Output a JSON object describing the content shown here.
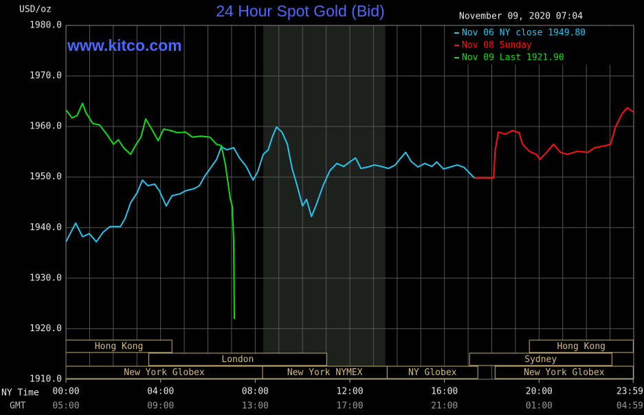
{
  "chart_data": {
    "type": "line",
    "title": "24 Hour Spot Gold (Bid)",
    "y_label": "USD/oz",
    "watermark": "www.kitco.com",
    "timestamp": "November 09, 2020 07:04",
    "x_row_label": "NY Time",
    "x2_row_label": "GMT",
    "xlim": [
      0,
      24
    ],
    "xticks": [
      {
        "value": 0,
        "label": "00:00"
      },
      {
        "value": 4,
        "label": "04:00"
      },
      {
        "value": 8,
        "label": "08:00"
      },
      {
        "value": 12,
        "label": "12:00"
      },
      {
        "value": 16,
        "label": "16:00"
      },
      {
        "value": 20,
        "label": "20:00"
      },
      {
        "value": 23.98,
        "label": "23:59"
      }
    ],
    "x2ticklabels": [
      "05:00",
      "09:00",
      "13:00",
      "17:00",
      "21:00",
      "01:00",
      "04:59"
    ],
    "xgrid_step": 1,
    "ylim": [
      1910,
      1980
    ],
    "yticks": [
      {
        "value": 1910,
        "label": "1910.0"
      },
      {
        "value": 1920,
        "label": "1920.0"
      },
      {
        "value": 1930,
        "label": "1930.0"
      },
      {
        "value": 1940,
        "label": "1940.0"
      },
      {
        "value": 1950,
        "label": "1950.0"
      },
      {
        "value": 1960,
        "label": "1960.0"
      },
      {
        "value": 1970,
        "label": "1970.0"
      },
      {
        "value": 1980,
        "label": "1980.0"
      }
    ],
    "grid": true,
    "shade": [
      8.34,
      13.5
    ],
    "sessions": [
      {
        "name": "Hong Kong",
        "start": 0,
        "end": 4.48,
        "row": 0
      },
      {
        "name": "London",
        "start": 3.5,
        "end": 11.02,
        "row": 1
      },
      {
        "name": "New York Globex",
        "start": 0,
        "end": 8.31,
        "row": 2
      },
      {
        "name": "New York NYMEX",
        "start": 8.31,
        "end": 13.58,
        "row": 2
      },
      {
        "name": "NY Globex",
        "start": 13.58,
        "end": 17.41,
        "row": 2
      },
      {
        "name": "Hong Kong",
        "start": 19.59,
        "end": 23.98,
        "row": 0
      },
      {
        "name": "Sydney",
        "start": 17.06,
        "end": 23.08,
        "row": 1
      },
      {
        "name": "New York Globex",
        "start": 18.14,
        "end": 23.98,
        "row": 2
      }
    ],
    "legend_position": "top-right",
    "series": [
      {
        "name": "Nov 06 NY close 1949.80",
        "color": "#22c8f0",
        "x": [
          0,
          0.41,
          0.7,
          0.99,
          1.28,
          1.57,
          1.86,
          2.3,
          2.5,
          2.73,
          3.02,
          3.23,
          3.46,
          3.75,
          3.95,
          4.24,
          4.48,
          4.83,
          5.06,
          5.41,
          5.64,
          5.87,
          6.1,
          6.37,
          6.57,
          6.8,
          7.09,
          7.33,
          7.62,
          7.91,
          8.11,
          8.34,
          8.55,
          8.72,
          8.9,
          9.13,
          9.36,
          9.56,
          9.77,
          10.0,
          10.17,
          10.38,
          10.58,
          10.87,
          11.16,
          11.45,
          11.74,
          12.03,
          12.24,
          12.47,
          12.76,
          13.05,
          13.34,
          13.63,
          13.92,
          14.16,
          14.36,
          14.59,
          14.88,
          15.17,
          15.47,
          15.67,
          15.96,
          16.25,
          16.54,
          16.83,
          17.27
        ],
        "values": [
          1937.2,
          1940.9,
          1938.2,
          1938.8,
          1937.2,
          1939.1,
          1940.2,
          1940.2,
          1941.8,
          1944.9,
          1947.0,
          1949.4,
          1948.3,
          1948.6,
          1947.3,
          1944.3,
          1946.3,
          1946.7,
          1947.3,
          1947.7,
          1948.3,
          1950.2,
          1951.7,
          1953.5,
          1956.0,
          1955.4,
          1955.8,
          1953.8,
          1952.1,
          1949.4,
          1951.1,
          1954.5,
          1955.4,
          1957.9,
          1959.9,
          1958.9,
          1956.5,
          1951.7,
          1948.3,
          1944.3,
          1945.6,
          1942.2,
          1944.5,
          1948.3,
          1951.3,
          1952.7,
          1952.1,
          1953.1,
          1953.8,
          1951.7,
          1952.0,
          1952.4,
          1952.1,
          1951.7,
          1952.4,
          1953.8,
          1954.9,
          1953.1,
          1952.0,
          1952.7,
          1952.1,
          1953.0,
          1951.6,
          1952.0,
          1952.4,
          1951.9,
          1949.8
        ]
      },
      {
        "name": "Nov 08 Sunday",
        "color": "#ff1010",
        "x": [
          17.27,
          18.08,
          18.14,
          18.28,
          18.58,
          18.87,
          19.16,
          19.3,
          19.59,
          19.88,
          20.03,
          20.32,
          20.61,
          20.9,
          21.19,
          21.63,
          22.06,
          22.35,
          22.79,
          23.02,
          23.23,
          23.52,
          23.72,
          23.98
        ],
        "values": [
          1949.8,
          1949.8,
          1955.1,
          1958.9,
          1958.5,
          1959.2,
          1958.8,
          1956.5,
          1955.1,
          1954.5,
          1953.5,
          1954.9,
          1956.5,
          1954.9,
          1954.5,
          1955.1,
          1954.9,
          1955.8,
          1956.2,
          1956.5,
          1959.9,
          1962.6,
          1963.7,
          1962.9
        ]
      },
      {
        "name": "Nov 09 Last 1921.90",
        "color": "#10e010",
        "x": [
          0,
          0.26,
          0.47,
          0.7,
          0.84,
          1.13,
          1.42,
          1.72,
          2.01,
          2.21,
          2.44,
          2.73,
          2.97,
          3.17,
          3.37,
          3.66,
          3.9,
          4.13,
          4.42,
          4.71,
          5.06,
          5.35,
          5.7,
          6.08,
          6.37,
          6.57,
          6.74,
          6.95,
          7.03,
          7.09,
          7.12
        ],
        "values": [
          1963.3,
          1961.7,
          1962.2,
          1964.6,
          1962.8,
          1960.6,
          1960.3,
          1958.5,
          1956.5,
          1957.4,
          1955.8,
          1954.5,
          1956.5,
          1957.9,
          1961.5,
          1959.2,
          1957.2,
          1959.5,
          1959.2,
          1958.8,
          1958.9,
          1957.9,
          1958.1,
          1957.9,
          1956.5,
          1956.2,
          1952.4,
          1945.6,
          1944.3,
          1937.5,
          1921.9
        ]
      }
    ]
  }
}
